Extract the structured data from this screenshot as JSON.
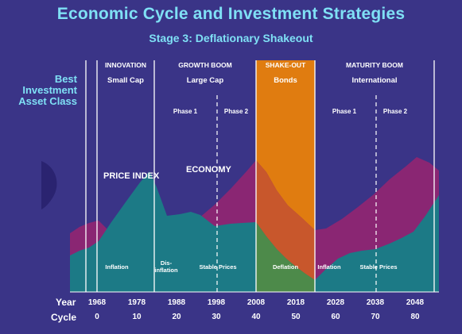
{
  "title": "Economic Cycle and Investment Strategies",
  "subtitle": "Stage 3: Deflationary Shakeout",
  "side_label": [
    "Best",
    "Investment",
    "Asset Class"
  ],
  "stages": [
    {
      "name": "INNOVATION",
      "asset": "Small Cap"
    },
    {
      "name": "GROWTH BOOM",
      "asset": "Large Cap"
    },
    {
      "name": "SHAKE-OUT",
      "asset": "Bonds"
    },
    {
      "name": "MATURITY BOOM",
      "asset": "International"
    }
  ],
  "phases": [
    "Phase 1",
    "Phase 2",
    "Phase 1",
    "Phase 2"
  ],
  "series": [
    "PRICE INDEX",
    "ECONOMY"
  ],
  "conditions": {
    "inflation_1": "Inflation",
    "disinflation": [
      "Dis-",
      "inflation"
    ],
    "stable_1": "Stable Prices",
    "deflation": "Deflation",
    "inflation_2": "Inflation",
    "stable_2": "Stable Prices"
  },
  "axis": {
    "year_title": "Year",
    "cycle_title": "Cycle",
    "years": [
      "1968",
      "1978",
      "1988",
      "1998",
      "2008",
      "2018",
      "2028",
      "2038",
      "2048"
    ],
    "cycles": [
      "0",
      "10",
      "20",
      "30",
      "40",
      "50",
      "60",
      "70",
      "80"
    ]
  },
  "colors": {
    "background": "#3a3487",
    "title": "#7fe0f5",
    "price_index": "#1c7a86",
    "economy": "#8a2673",
    "shakeout": "#e07c10",
    "overlap": "#c8572c",
    "deflation_green": "#4d8a4a"
  }
}
